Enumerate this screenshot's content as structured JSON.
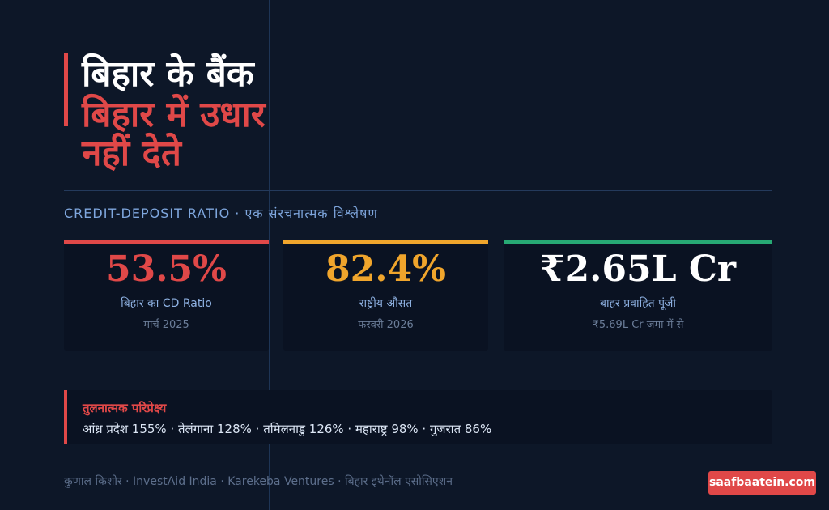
{
  "title": {
    "line1": "बिहार के बैंक",
    "line2": "बिहार में उधार नहीं देते"
  },
  "subtitle": "CREDIT-DEPOSIT RATIO · एक संरचनात्मक विश्लेषण",
  "stats": [
    {
      "value": "53.5%",
      "label": "बिहार का CD Ratio",
      "sub": "मार्च 2025",
      "color": "#e04848"
    },
    {
      "value": "82.4%",
      "label": "राष्ट्रीय औसत",
      "sub": "फरवरी 2026",
      "color": "#f0a52c"
    },
    {
      "value": "₹2.65L Cr",
      "label": "बाहर प्रवाहित पूंजी",
      "sub": "₹5.69L Cr जमा में से",
      "color": "#ffffff",
      "bar_color": "#27a974"
    }
  ],
  "comparison": {
    "title": "तुलनात्मक परिप्रेक्ष्य",
    "text": "आंध्र प्रदेश 155% · तेलंगाना 128% · तमिलनाडु 126% · महाराष्ट्र 98% · गुजरात 86%"
  },
  "footer": "कुणाल किशोर · InvestAid India · Karekeba Ventures · बिहार इथेनॉल एसोसिएशन",
  "badge": "saafbaatein.com",
  "colors": {
    "background": "#0d1728",
    "accent_red": "#e04848",
    "accent_orange": "#f0a52c",
    "accent_green": "#27a974"
  }
}
